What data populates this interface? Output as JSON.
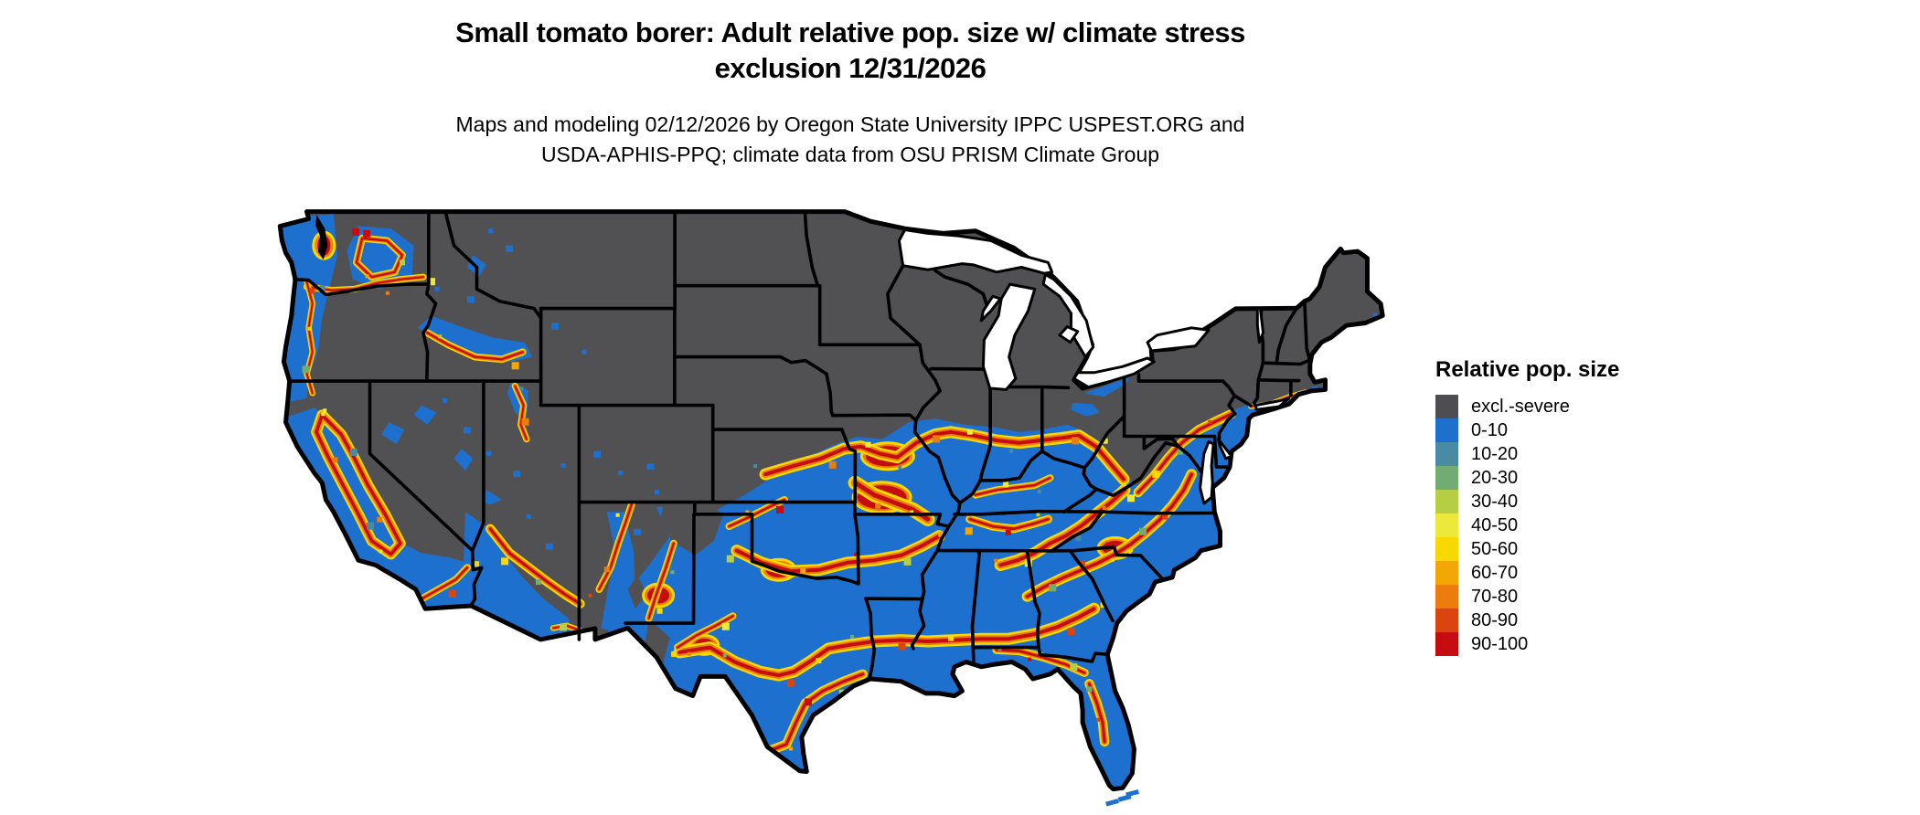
{
  "header": {
    "title_line1": "Small tomato borer: Adult relative pop. size w/ climate stress",
    "title_line2": "exclusion 12/31/2026",
    "subtitle_line1": "Maps and modeling 02/12/2026 by Oregon State University IPPC USPEST.ORG and",
    "subtitle_line2": "USDA-APHIS-PPQ; climate data from OSU PRISM Climate Group"
  },
  "legend": {
    "title": "Relative pop. size",
    "items": [
      {
        "label": "excl.-severe",
        "color": "#4e4e52"
      },
      {
        "label": "0-10",
        "color": "#1e70cf"
      },
      {
        "label": "10-20",
        "color": "#4a8ba4"
      },
      {
        "label": "20-30",
        "color": "#72ac72"
      },
      {
        "label": "30-40",
        "color": "#b6ce44"
      },
      {
        "label": "40-50",
        "color": "#eae93c"
      },
      {
        "label": "50-60",
        "color": "#f8d802"
      },
      {
        "label": "60-70",
        "color": "#f2a705"
      },
      {
        "label": "70-80",
        "color": "#ec7c0c"
      },
      {
        "label": "80-90",
        "color": "#d9440f"
      },
      {
        "label": "90-100",
        "color": "#c50d11"
      }
    ]
  },
  "map": {
    "background": "#ffffff",
    "water": "#ffffff",
    "boundary": "#000000",
    "excluded_fill": "#515154",
    "suitable_fill": "#1e70cf",
    "band_yellow": "#f8d802",
    "band_orange": "#ec7c0c",
    "band_red": "#c50d11"
  }
}
